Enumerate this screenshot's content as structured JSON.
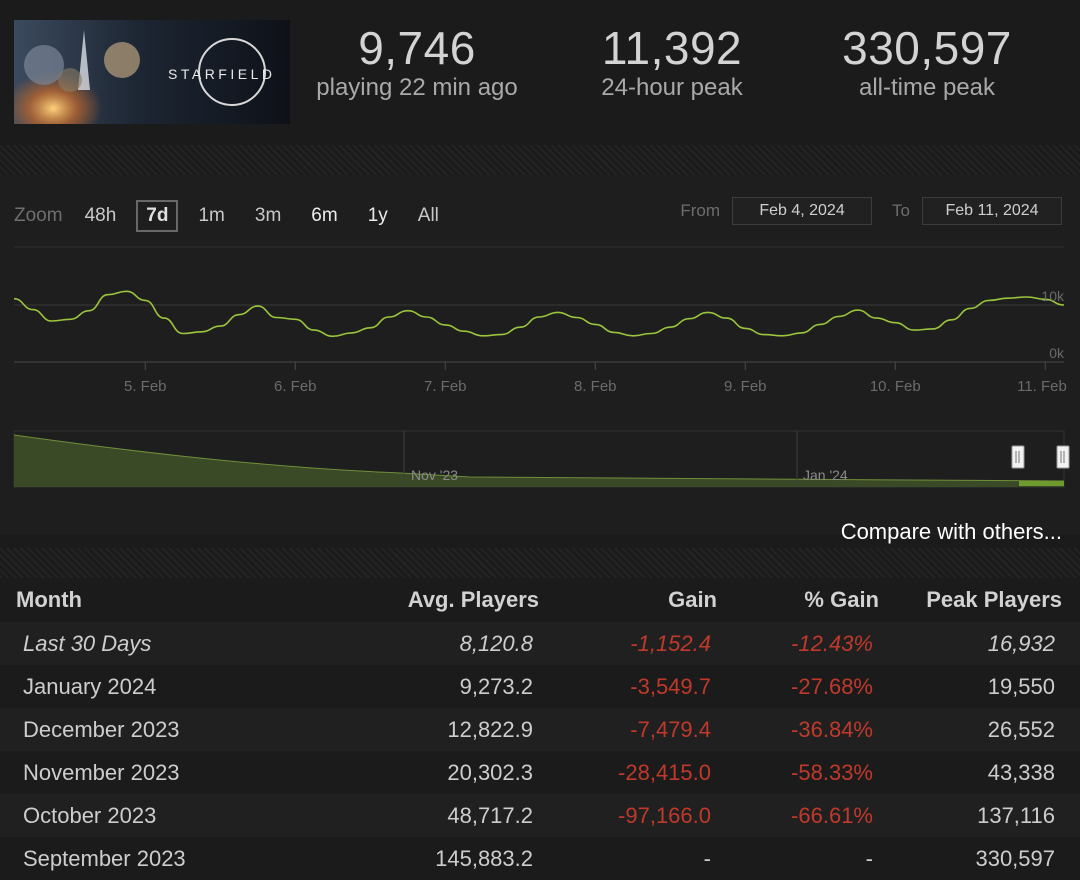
{
  "game": {
    "logo_text": "STARFIELD"
  },
  "stats": [
    {
      "value": "9,746",
      "label": "playing 22 min ago"
    },
    {
      "value": "11,392",
      "label": "24-hour peak"
    },
    {
      "value": "330,597",
      "label": "all-time peak"
    }
  ],
  "chart": {
    "zoom_label": "Zoom",
    "zoom_options": [
      "48h",
      "7d",
      "1m",
      "3m",
      "6m",
      "1y",
      "All"
    ],
    "zoom_active": "7d",
    "from_label": "From",
    "from_value": "Feb 4, 2024",
    "to_label": "To",
    "to_value": "Feb 11, 2024",
    "navigator_labels": [
      "Nov '23",
      "Jan '24"
    ],
    "compare_label": "Compare with others..."
  },
  "chart_data": {
    "type": "line",
    "series": [
      {
        "name": "",
        "x": [
          "Feb 4 03:00",
          "Feb 4 06:00",
          "Feb 4 09:00",
          "Feb 4 12:00",
          "Feb 4 15:00",
          "Feb 4 18:00",
          "Feb 4 21:00",
          "Feb 5 00:00",
          "Feb 5 03:00",
          "Feb 5 06:00",
          "Feb 5 09:00",
          "Feb 5 12:00",
          "Feb 5 15:00",
          "Feb 5 18:00",
          "Feb 5 21:00",
          "Feb 6 00:00",
          "Feb 6 03:00",
          "Feb 6 06:00",
          "Feb 6 09:00",
          "Feb 6 12:00",
          "Feb 6 15:00",
          "Feb 6 18:00",
          "Feb 6 21:00",
          "Feb 7 00:00",
          "Feb 7 03:00",
          "Feb 7 06:00",
          "Feb 7 09:00",
          "Feb 7 12:00",
          "Feb 7 15:00",
          "Feb 7 18:00",
          "Feb 7 21:00",
          "Feb 8 00:00",
          "Feb 8 03:00",
          "Feb 8 06:00",
          "Feb 8 09:00",
          "Feb 8 12:00",
          "Feb 8 15:00",
          "Feb 8 18:00",
          "Feb 8 21:00",
          "Feb 9 00:00",
          "Feb 9 03:00",
          "Feb 9 06:00",
          "Feb 9 09:00",
          "Feb 9 12:00",
          "Feb 9 15:00",
          "Feb 9 18:00",
          "Feb 9 21:00",
          "Feb 10 00:00",
          "Feb 10 03:00",
          "Feb 10 06:00",
          "Feb 10 09:00",
          "Feb 10 12:00",
          "Feb 10 15:00",
          "Feb 10 18:00",
          "Feb 10 21:00",
          "Feb 11 00:00",
          "Feb 11 03:00"
        ],
        "values": [
          11100,
          9200,
          7200,
          7500,
          9000,
          11800,
          12400,
          10800,
          7700,
          5000,
          5300,
          6300,
          8300,
          9800,
          7800,
          7500,
          5600,
          4500,
          5100,
          6000,
          7900,
          9000,
          7900,
          6500,
          5400,
          4600,
          4800,
          6100,
          7900,
          8700,
          7800,
          6600,
          5200,
          4600,
          5000,
          6100,
          7600,
          8700,
          7700,
          5900,
          4800,
          4600,
          5100,
          6600,
          8000,
          9100,
          7700,
          6900,
          5600,
          5800,
          7400,
          9400,
          10800,
          11200,
          11400,
          11000,
          10000
        ]
      }
    ],
    "y_ticks": [
      "0k",
      "10k"
    ],
    "ylim": [
      0,
      20000
    ],
    "x_ticks": [
      "5. Feb",
      "6. Feb",
      "7. Feb",
      "8. Feb",
      "9. Feb",
      "10. Feb",
      "11. Feb"
    ],
    "grid": true
  },
  "table": {
    "headers": [
      "Month",
      "Avg. Players",
      "Gain",
      "% Gain",
      "Peak Players"
    ],
    "rows": [
      {
        "month": "Last 30 Days",
        "avg": "8,120.8",
        "gain": "-1,152.4",
        "pct": "-12.43%",
        "peak": "16,932"
      },
      {
        "month": "January 2024",
        "avg": "9,273.2",
        "gain": "-3,549.7",
        "pct": "-27.68%",
        "peak": "19,550"
      },
      {
        "month": "December 2023",
        "avg": "12,822.9",
        "gain": "-7,479.4",
        "pct": "-36.84%",
        "peak": "26,552"
      },
      {
        "month": "November 2023",
        "avg": "20,302.3",
        "gain": "-28,415.0",
        "pct": "-58.33%",
        "peak": "43,338"
      },
      {
        "month": "October 2023",
        "avg": "48,717.2",
        "gain": "-97,166.0",
        "pct": "-66.61%",
        "peak": "137,116"
      },
      {
        "month": "September 2023",
        "avg": "145,883.2",
        "gain": "-",
        "pct": "-",
        "peak": "330,597"
      }
    ]
  }
}
